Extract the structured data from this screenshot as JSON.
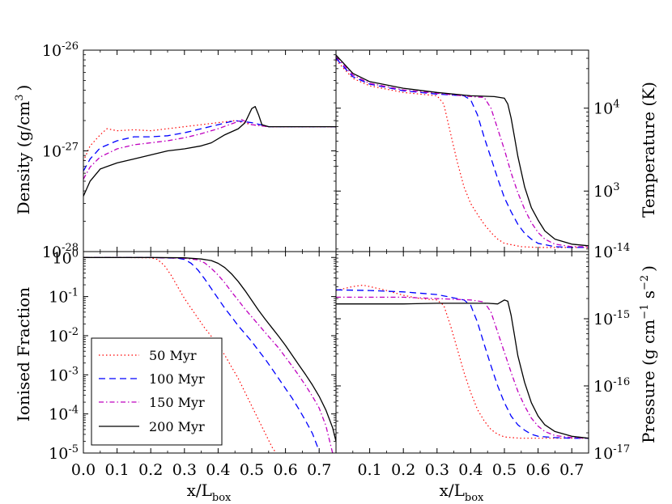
{
  "chart_data": {
    "type": "line",
    "xlabel_base": "x/L",
    "xlabel_sub": "box",
    "x_ticks": [
      "0.0",
      "0.1",
      "0.2",
      "0.3",
      "0.4",
      "0.5",
      "0.6",
      "0.7"
    ],
    "x_ticks_right": [
      "0.1",
      "0.2",
      "0.3",
      "0.4",
      "0.5",
      "0.6",
      "0.7"
    ],
    "xlim": [
      0.0,
      0.75
    ],
    "legend": {
      "placement": "lower-left of ionised-fraction panel",
      "entries": [
        {
          "label": "50 Myr",
          "color": "#ff0000",
          "style": "dotted"
        },
        {
          "label": "100 Myr",
          "color": "#0000ff",
          "style": "dashed"
        },
        {
          "label": "150 Myr",
          "color": "#bf00bf",
          "style": "dashdot"
        },
        {
          "label": "200 Myr",
          "color": "#000000",
          "style": "solid"
        }
      ]
    },
    "panels": {
      "density": {
        "ylabel": "Density (g/cm",
        "ylabel_sup": "3",
        "ylabel_close": ")",
        "yscale": "log",
        "ylog_range": [
          -28,
          -26
        ],
        "y_ticks": [
          {
            "base": "10",
            "exp": "-26"
          },
          {
            "base": "10",
            "exp": "-27"
          },
          {
            "base": "10",
            "exp": "-28"
          }
        ],
        "series": [
          {
            "name": "50 Myr",
            "x": [
              0.0,
              0.02,
              0.05,
              0.07,
              0.1,
              0.15,
              0.2,
              0.25,
              0.3,
              0.35,
              0.4,
              0.45,
              0.5,
              0.55,
              0.6,
              0.65,
              0.7,
              0.75
            ],
            "y": [
              -27.1,
              -26.95,
              -26.84,
              -26.78,
              -26.8,
              -26.79,
              -26.8,
              -26.78,
              -26.76,
              -26.74,
              -26.72,
              -26.7,
              -26.74,
              -26.76,
              -26.76,
              -26.76,
              -26.76,
              -26.76
            ]
          },
          {
            "name": "100 Myr",
            "x": [
              0.0,
              0.02,
              0.05,
              0.1,
              0.15,
              0.2,
              0.25,
              0.3,
              0.35,
              0.4,
              0.45,
              0.5,
              0.55,
              0.6,
              0.65,
              0.7,
              0.75
            ],
            "y": [
              -27.2,
              -27.08,
              -26.97,
              -26.9,
              -26.86,
              -26.86,
              -26.85,
              -26.82,
              -26.78,
              -26.74,
              -26.7,
              -26.72,
              -26.76,
              -26.76,
              -26.76,
              -26.76,
              -26.76
            ]
          },
          {
            "name": "150 Myr",
            "x": [
              0.0,
              0.02,
              0.05,
              0.1,
              0.15,
              0.2,
              0.25,
              0.3,
              0.35,
              0.4,
              0.45,
              0.47,
              0.5,
              0.55,
              0.6,
              0.65,
              0.7,
              0.75
            ],
            "y": [
              -27.28,
              -27.16,
              -27.06,
              -26.98,
              -26.94,
              -26.92,
              -26.9,
              -26.87,
              -26.83,
              -26.78,
              -26.72,
              -26.69,
              -26.74,
              -26.76,
              -26.76,
              -26.76,
              -26.76,
              -26.76
            ]
          },
          {
            "name": "200 Myr",
            "x": [
              0.0,
              0.02,
              0.05,
              0.1,
              0.15,
              0.2,
              0.25,
              0.3,
              0.35,
              0.38,
              0.42,
              0.46,
              0.48,
              0.5,
              0.51,
              0.52,
              0.53,
              0.55,
              0.6,
              0.65,
              0.7,
              0.75
            ],
            "y": [
              -27.45,
              -27.3,
              -27.18,
              -27.12,
              -27.08,
              -27.04,
              -27.0,
              -26.98,
              -26.95,
              -26.92,
              -26.84,
              -26.78,
              -26.72,
              -26.58,
              -26.56,
              -26.64,
              -26.74,
              -26.76,
              -26.76,
              -26.76,
              -26.76,
              -26.76
            ]
          }
        ]
      },
      "temperature": {
        "ylabel": "Temperature (K)",
        "yscale": "log",
        "ylog_range": [
          2.27,
          4.7
        ],
        "y_ticks": [
          {
            "base": "10",
            "exp": "4",
            "v": 4
          },
          {
            "base": "10",
            "exp": "3",
            "v": 3
          }
        ],
        "series": [
          {
            "name": "50 Myr",
            "x": [
              0.0,
              0.05,
              0.1,
              0.2,
              0.3,
              0.32,
              0.34,
              0.36,
              0.38,
              0.4,
              0.42,
              0.44,
              0.46,
              0.48,
              0.5,
              0.55,
              0.6,
              0.7,
              0.75
            ],
            "y": [
              4.58,
              4.36,
              4.27,
              4.19,
              4.15,
              4.05,
              3.7,
              3.35,
              3.05,
              2.85,
              2.72,
              2.6,
              2.5,
              2.42,
              2.37,
              2.33,
              2.32,
              2.32,
              2.32
            ]
          },
          {
            "name": "100 Myr",
            "x": [
              0.0,
              0.05,
              0.1,
              0.2,
              0.3,
              0.38,
              0.4,
              0.42,
              0.44,
              0.46,
              0.48,
              0.5,
              0.52,
              0.54,
              0.56,
              0.58,
              0.6,
              0.65,
              0.7,
              0.75
            ],
            "y": [
              4.6,
              4.38,
              4.29,
              4.21,
              4.17,
              4.15,
              4.1,
              3.92,
              3.65,
              3.4,
              3.15,
              2.92,
              2.75,
              2.6,
              2.49,
              2.42,
              2.37,
              2.33,
              2.32,
              2.32
            ]
          },
          {
            "name": "150 Myr",
            "x": [
              0.0,
              0.05,
              0.1,
              0.2,
              0.3,
              0.4,
              0.44,
              0.46,
              0.48,
              0.5,
              0.52,
              0.54,
              0.56,
              0.58,
              0.6,
              0.62,
              0.65,
              0.7,
              0.75
            ],
            "y": [
              4.62,
              4.4,
              4.3,
              4.22,
              4.18,
              4.14,
              4.13,
              4.0,
              3.75,
              3.5,
              3.22,
              2.98,
              2.78,
              2.62,
              2.5,
              2.42,
              2.36,
              2.33,
              2.33
            ]
          },
          {
            "name": "200 Myr",
            "x": [
              0.0,
              0.05,
              0.1,
              0.2,
              0.3,
              0.4,
              0.47,
              0.5,
              0.51,
              0.52,
              0.53,
              0.54,
              0.56,
              0.58,
              0.6,
              0.62,
              0.65,
              0.7,
              0.75
            ],
            "y": [
              4.64,
              4.42,
              4.32,
              4.24,
              4.19,
              4.15,
              4.14,
              4.12,
              4.05,
              3.88,
              3.65,
              3.42,
              3.05,
              2.8,
              2.65,
              2.52,
              2.42,
              2.36,
              2.34
            ]
          }
        ]
      },
      "ionised": {
        "ylabel": "Ionised Fraction",
        "yscale": "log",
        "ylog_range": [
          -5,
          0.15
        ],
        "y_ticks": [
          {
            "base": "10",
            "exp": "0",
            "v": 0
          },
          {
            "base": "10",
            "exp": "-1",
            "v": -1
          },
          {
            "base": "10",
            "exp": "-2",
            "v": -2
          },
          {
            "base": "10",
            "exp": "-3",
            "v": -3
          },
          {
            "base": "10",
            "exp": "-4",
            "v": -4
          },
          {
            "base": "10",
            "exp": "-5",
            "v": -5
          }
        ],
        "series": [
          {
            "name": "50 Myr",
            "x": [
              0.0,
              0.1,
              0.2,
              0.22,
              0.24,
              0.26,
              0.28,
              0.3,
              0.32,
              0.34,
              0.36,
              0.38,
              0.4,
              0.42,
              0.44,
              0.46,
              0.48,
              0.5,
              0.52,
              0.54,
              0.56,
              0.58
            ],
            "y": [
              0.0,
              0.0,
              -0.01,
              -0.05,
              -0.2,
              -0.45,
              -0.75,
              -1.05,
              -1.3,
              -1.55,
              -1.8,
              -2.02,
              -2.25,
              -2.5,
              -2.8,
              -3.1,
              -3.45,
              -3.8,
              -4.15,
              -4.5,
              -4.85,
              -5.1
            ]
          },
          {
            "name": "100 Myr",
            "x": [
              0.0,
              0.1,
              0.2,
              0.28,
              0.3,
              0.32,
              0.34,
              0.36,
              0.38,
              0.4,
              0.42,
              0.44,
              0.46,
              0.48,
              0.5,
              0.52,
              0.54,
              0.56,
              0.58,
              0.6,
              0.62,
              0.64,
              0.66,
              0.68,
              0.7
            ],
            "y": [
              0.0,
              0.0,
              0.0,
              -0.02,
              -0.05,
              -0.15,
              -0.32,
              -0.55,
              -0.8,
              -1.05,
              -1.3,
              -1.52,
              -1.75,
              -1.95,
              -2.15,
              -2.38,
              -2.6,
              -2.85,
              -3.1,
              -3.35,
              -3.6,
              -3.88,
              -4.18,
              -4.5,
              -4.95
            ]
          },
          {
            "name": "150 Myr",
            "x": [
              0.0,
              0.1,
              0.2,
              0.3,
              0.34,
              0.36,
              0.38,
              0.4,
              0.42,
              0.44,
              0.46,
              0.48,
              0.5,
              0.52,
              0.54,
              0.56,
              0.58,
              0.6,
              0.62,
              0.64,
              0.66,
              0.68,
              0.7,
              0.72,
              0.74
            ],
            "y": [
              0.0,
              0.0,
              0.0,
              -0.02,
              -0.06,
              -0.14,
              -0.28,
              -0.45,
              -0.65,
              -0.88,
              -1.1,
              -1.32,
              -1.52,
              -1.72,
              -1.92,
              -2.12,
              -2.32,
              -2.55,
              -2.78,
              -3.02,
              -3.28,
              -3.55,
              -3.85,
              -4.3,
              -5.0
            ]
          },
          {
            "name": "200 Myr",
            "x": [
              0.0,
              0.1,
              0.2,
              0.3,
              0.35,
              0.38,
              0.4,
              0.42,
              0.44,
              0.46,
              0.48,
              0.5,
              0.52,
              0.54,
              0.56,
              0.58,
              0.6,
              0.62,
              0.64,
              0.66,
              0.68,
              0.7,
              0.72,
              0.74,
              0.75
            ],
            "y": [
              0.0,
              0.0,
              0.0,
              -0.01,
              -0.04,
              -0.08,
              -0.15,
              -0.26,
              -0.42,
              -0.62,
              -0.85,
              -1.1,
              -1.35,
              -1.58,
              -1.8,
              -2.02,
              -2.25,
              -2.5,
              -2.75,
              -3.0,
              -3.26,
              -3.55,
              -3.9,
              -4.35,
              -4.7
            ]
          }
        ]
      },
      "pressure": {
        "ylabel": "Pressure (g cm",
        "ylabel_sup1": "−1",
        "ylabel_mid": " s",
        "ylabel_sup2": "−2",
        "ylabel_close": ")",
        "yscale": "log",
        "ylog_range": [
          -17,
          -14
        ],
        "y_ticks": [
          {
            "base": "10",
            "exp": "-14",
            "v": -14
          },
          {
            "base": "10",
            "exp": "-15",
            "v": -15
          },
          {
            "base": "10",
            "exp": "-16",
            "v": -16
          },
          {
            "base": "10",
            "exp": "-17",
            "v": -17
          }
        ],
        "series": [
          {
            "name": "50 Myr",
            "x": [
              0.0,
              0.05,
              0.08,
              0.1,
              0.15,
              0.2,
              0.25,
              0.3,
              0.32,
              0.34,
              0.36,
              0.38,
              0.4,
              0.42,
              0.44,
              0.46,
              0.48,
              0.5,
              0.52,
              0.55,
              0.6,
              0.7,
              0.75
            ],
            "y": [
              -14.58,
              -14.52,
              -14.5,
              -14.52,
              -14.58,
              -14.65,
              -14.7,
              -14.72,
              -14.8,
              -15.1,
              -15.45,
              -15.8,
              -16.1,
              -16.35,
              -16.52,
              -16.65,
              -16.72,
              -16.76,
              -16.77,
              -16.78,
              -16.78,
              -16.78,
              -16.78
            ]
          },
          {
            "name": "100 Myr",
            "x": [
              0.0,
              0.1,
              0.2,
              0.3,
              0.38,
              0.4,
              0.42,
              0.44,
              0.46,
              0.48,
              0.5,
              0.52,
              0.54,
              0.56,
              0.58,
              0.6,
              0.65,
              0.7,
              0.75
            ],
            "y": [
              -14.57,
              -14.58,
              -14.6,
              -14.64,
              -14.72,
              -14.8,
              -15.05,
              -15.38,
              -15.7,
              -16.0,
              -16.25,
              -16.45,
              -16.58,
              -16.66,
              -16.72,
              -16.75,
              -16.77,
              -16.78,
              -16.78
            ]
          },
          {
            "name": "150 Myr",
            "x": [
              0.0,
              0.1,
              0.2,
              0.3,
              0.4,
              0.44,
              0.46,
              0.48,
              0.5,
              0.52,
              0.54,
              0.56,
              0.58,
              0.6,
              0.62,
              0.65,
              0.7,
              0.75
            ],
            "y": [
              -14.68,
              -14.68,
              -14.68,
              -14.7,
              -14.72,
              -14.75,
              -14.9,
              -15.2,
              -15.5,
              -15.8,
              -16.08,
              -16.3,
              -16.48,
              -16.6,
              -16.68,
              -16.74,
              -16.77,
              -16.78
            ]
          },
          {
            "name": "200 Myr",
            "x": [
              0.0,
              0.1,
              0.2,
              0.3,
              0.4,
              0.45,
              0.48,
              0.5,
              0.51,
              0.52,
              0.53,
              0.54,
              0.56,
              0.58,
              0.6,
              0.62,
              0.65,
              0.7,
              0.75
            ],
            "y": [
              -14.78,
              -14.78,
              -14.78,
              -14.77,
              -14.77,
              -14.77,
              -14.78,
              -14.72,
              -14.74,
              -14.95,
              -15.25,
              -15.55,
              -15.95,
              -16.25,
              -16.45,
              -16.58,
              -16.68,
              -16.75,
              -16.78
            ]
          }
        ]
      }
    }
  }
}
